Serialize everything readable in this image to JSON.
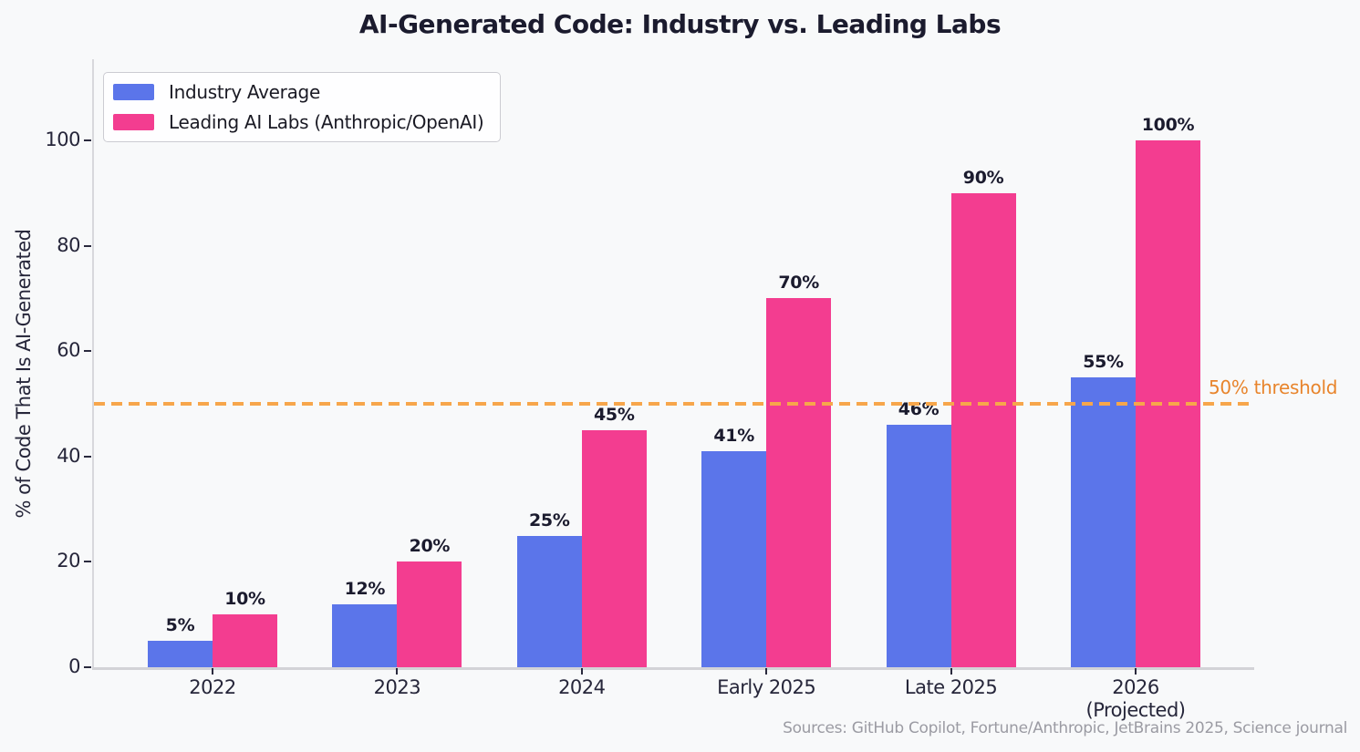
{
  "title": "AI-Generated Code: Industry vs. Leading Labs",
  "chart_data": {
    "type": "bar",
    "title": "AI-Generated Code: Industry vs. Leading Labs",
    "categories": [
      "2022",
      "2023",
      "2024",
      "Early 2025",
      "Late 2025",
      "2026\n(Projected)"
    ],
    "series": [
      {
        "name": "Industry Average",
        "color": "#5b75ea",
        "values": [
          5,
          12,
          25,
          41,
          46,
          55
        ]
      },
      {
        "name": "Leading AI Labs (Anthropic/OpenAI)",
        "color": "#f33d90",
        "values": [
          10,
          20,
          45,
          70,
          90,
          100
        ]
      }
    ],
    "xlabel": "",
    "ylabel": "% of Code That Is AI-Generated",
    "yticks": [
      0,
      20,
      40,
      60,
      80,
      100
    ],
    "ylim": [
      0,
      115.4
    ],
    "value_label_suffix": "%",
    "grid": false,
    "legend_position": "upper-left",
    "threshold": {
      "value": 50,
      "label": "50% threshold",
      "line_color": "#f7a64b",
      "text_color": "#e8842b"
    },
    "source_note": "Sources: GitHub Copilot, Fortune/Anthropic, JetBrains 2025, Science journal"
  },
  "colors": {
    "background": "#f8f9fa",
    "title_text": "#1b1b2e",
    "tick_text": "#26263a",
    "value_label_text": "#1b1b2e",
    "spine": "#d6d6da",
    "source_text": "#9b9ba3"
  }
}
